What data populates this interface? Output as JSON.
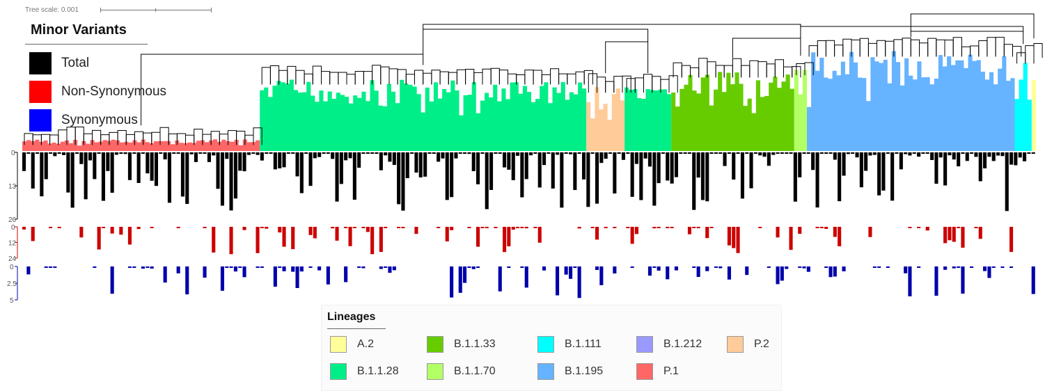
{
  "tree_scale": "Tree scale: 0.001",
  "minor_variants": {
    "title": "Minor Variants",
    "items": [
      {
        "label": "Total",
        "color": "#000000"
      },
      {
        "label": "Non-Synonymous",
        "color": "#ff0000"
      },
      {
        "label": "Synonymous",
        "color": "#0000ff"
      }
    ]
  },
  "tracks": [
    {
      "name": "total",
      "color": "#000000",
      "ticks": [
        "0",
        "13",
        "26"
      ]
    },
    {
      "name": "non-synonymous",
      "color": "#cc0000",
      "ticks": [
        "0",
        "12",
        "24"
      ]
    },
    {
      "name": "synonymous",
      "color": "#0000aa",
      "ticks": [
        "0",
        "2.5",
        "5"
      ]
    }
  ],
  "clades": [
    {
      "lineage": "P.1",
      "n": 56,
      "level": 0.1
    },
    {
      "lineage": "B.1.1.28",
      "n": 77,
      "level": 0.62
    },
    {
      "lineage": "P.2",
      "n": 9,
      "level": 0.55
    },
    {
      "lineage": "B.1.1.28",
      "n": 11,
      "level": 0.55
    },
    {
      "lineage": "B.1.1.33",
      "n": 29,
      "level": 0.68
    },
    {
      "lineage": "B.1.1.70",
      "n": 3,
      "level": 0.7
    },
    {
      "lineage": "B.1.195",
      "n": 49,
      "level": 0.86
    },
    {
      "lineage": "B.1.111",
      "n": 4,
      "level": 0.8
    },
    {
      "lineage": "A.2",
      "n": 1,
      "level": 0.85
    }
  ],
  "lineages": {
    "title": "Lineages",
    "items": [
      {
        "label": "A.2",
        "color": "#ffff99"
      },
      {
        "label": "B.1.1.33",
        "color": "#66cc00"
      },
      {
        "label": "B.1.111",
        "color": "#00ffff"
      },
      {
        "label": "B.1.212",
        "color": "#9999ff"
      },
      {
        "label": "P.2",
        "color": "#ffcc99"
      },
      {
        "label": "B.1.1.28",
        "color": "#00ee88"
      },
      {
        "label": "B.1.1.70",
        "color": "#b3ff66"
      },
      {
        "label": "B.1.195",
        "color": "#66b3ff"
      },
      {
        "label": "P.1",
        "color": "#ff6666"
      }
    ]
  }
}
